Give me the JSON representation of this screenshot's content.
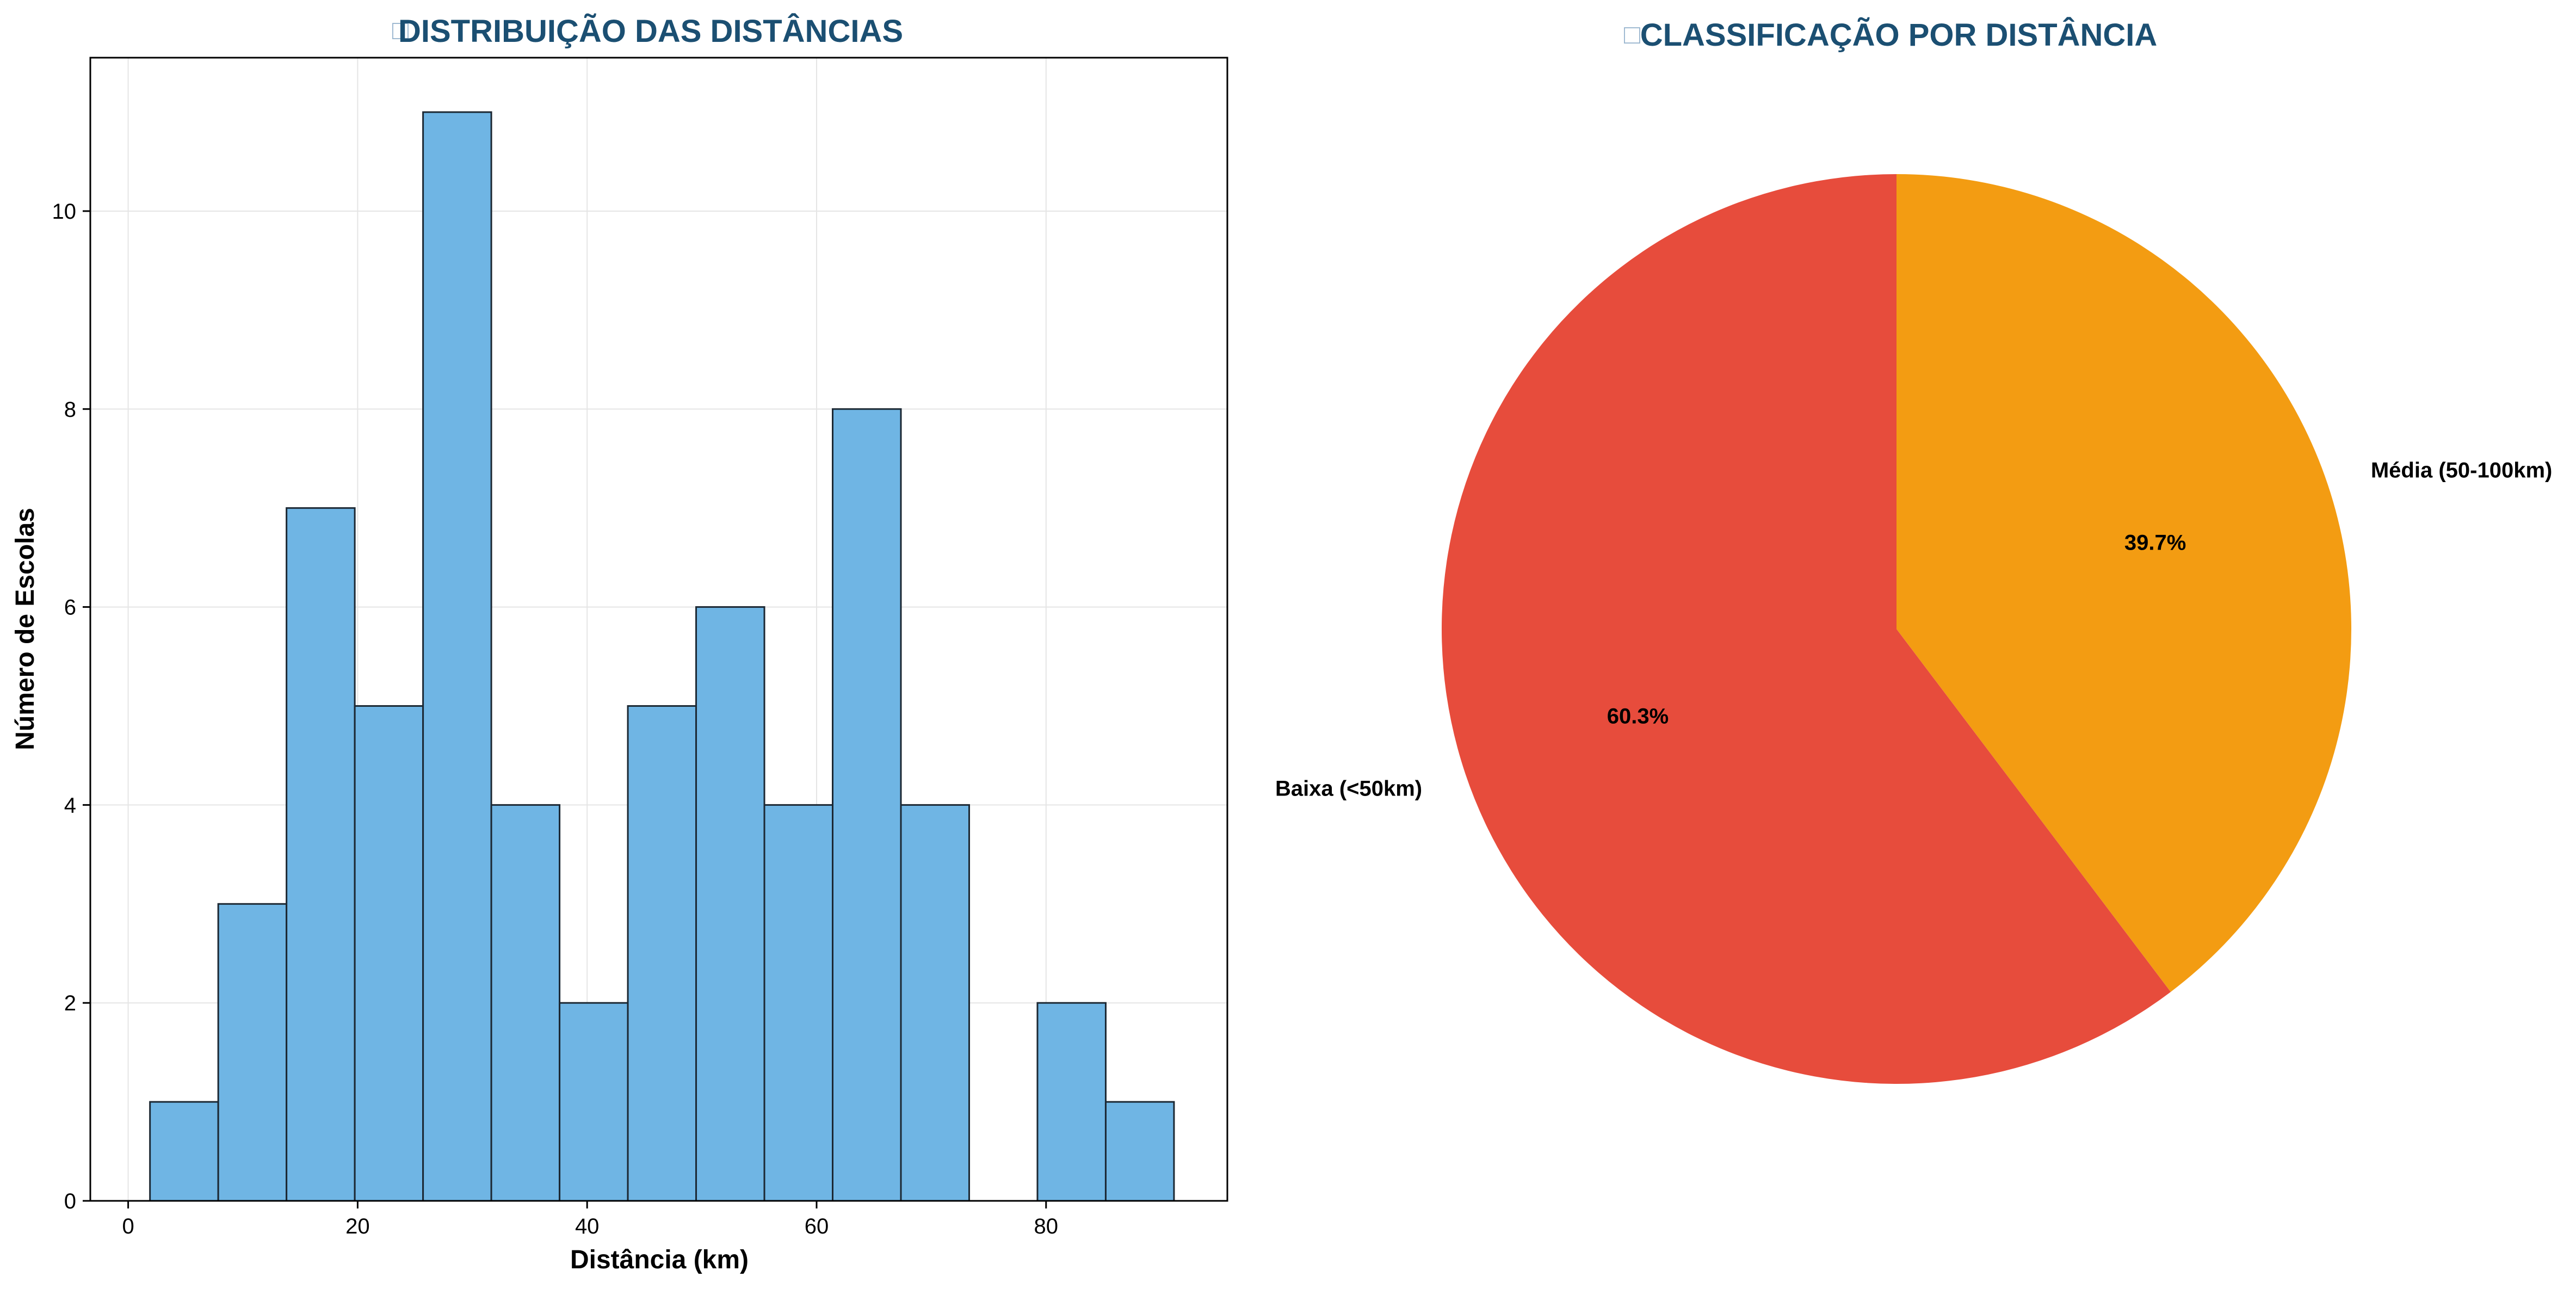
{
  "chart_data": [
    {
      "type": "bar",
      "title": "DISTRIBUIÇÃO DAS DISTÂNCIAS",
      "title_icon": "map-icon",
      "xlabel": "Distância (km)",
      "ylabel": "Número de Escolas",
      "xlim": [
        -3.3,
        95.8
      ],
      "ylim": [
        0,
        11.55
      ],
      "x_ticks": [
        0,
        20,
        40,
        60,
        80
      ],
      "y_ticks": [
        0,
        2,
        4,
        6,
        8,
        10
      ],
      "grid": true,
      "bin_edges": [
        1.9,
        7.85,
        13.8,
        19.75,
        25.7,
        31.65,
        37.6,
        43.55,
        49.5,
        55.45,
        61.4,
        67.35,
        73.3,
        79.25,
        85.2,
        91.15
      ],
      "values": [
        1,
        3,
        7,
        5,
        11,
        4,
        2,
        5,
        6,
        4,
        8,
        4,
        0,
        2,
        1
      ],
      "bar_color": "#6FB5E4",
      "edge_color": "#1C2833"
    },
    {
      "type": "pie",
      "title": "CLASSIFICAÇÃO POR DISTÂNCIA",
      "title_icon": "pin-icon",
      "slices": [
        {
          "label": "Baixa (<50km)",
          "value": 60.3,
          "pct_label": "60.3%",
          "color": "#E74C3C"
        },
        {
          "label": "Média (50-100km)",
          "value": 39.7,
          "pct_label": "39.7%",
          "color": "#F39C12"
        }
      ],
      "start_angle": 90,
      "direction": "counterclockwise"
    }
  ],
  "colors": {
    "title": "#1B4F72",
    "text": "#000000",
    "grid": "#E5E5E5"
  }
}
